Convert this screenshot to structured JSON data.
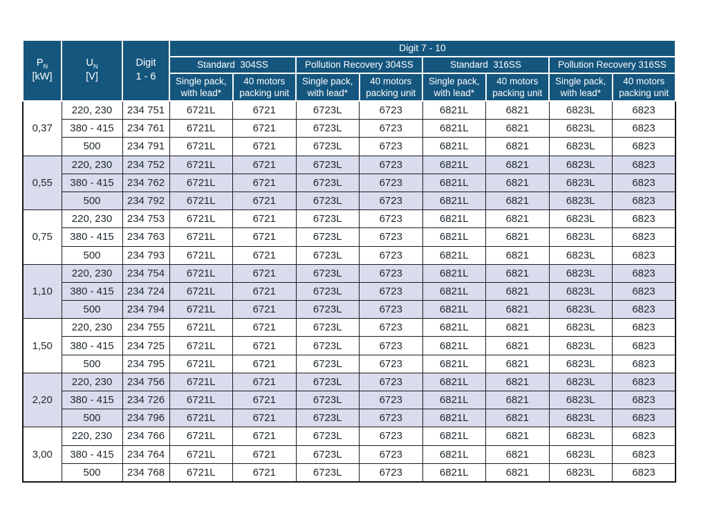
{
  "colors": {
    "header_bg": "#15567e",
    "header_text": "#ffffff",
    "row_shaded": "#d9dced",
    "border": "#1a1a1a",
    "body_text": "#1c262b"
  },
  "table": {
    "header": {
      "pn": {
        "symbol": "P",
        "sub": "N",
        "unit": "[kW]"
      },
      "un": {
        "symbol": "U",
        "sub": "N",
        "unit": "[V]"
      },
      "digit16": {
        "line1": "Digit",
        "line2": "1 - 6"
      },
      "digit_span": "Digit  7 - 10",
      "material_groups": [
        {
          "label": "Standard  304SS"
        },
        {
          "label": "Pollution Recovery 304SS"
        },
        {
          "label": "Standard  316SS"
        },
        {
          "label": "Pollution Recovery 316SS"
        }
      ],
      "sub_single": {
        "line1": "Single pack,",
        "line2": "with lead*"
      },
      "sub_pack": {
        "line1": "40 motors",
        "line2": "packing unit"
      }
    },
    "groups": [
      {
        "pn": "0,37",
        "shaded": false,
        "rows": [
          {
            "un": "220, 230",
            "digit": "234 751",
            "codes": [
              "6721L",
              "6721",
              "6723L",
              "6723",
              "6821L",
              "6821",
              "6823L",
              "6823"
            ]
          },
          {
            "un": "380 - 415",
            "digit": "234 761",
            "codes": [
              "6721L",
              "6721",
              "6723L",
              "6723",
              "6821L",
              "6821",
              "6823L",
              "6823"
            ]
          },
          {
            "un": "500",
            "digit": "234 791",
            "codes": [
              "6721L",
              "6721",
              "6723L",
              "6723",
              "6821L",
              "6821",
              "6823L",
              "6823"
            ]
          }
        ]
      },
      {
        "pn": "0,55",
        "shaded": true,
        "rows": [
          {
            "un": "220, 230",
            "digit": "234 752",
            "codes": [
              "6721L",
              "6721",
              "6723L",
              "6723",
              "6821L",
              "6821",
              "6823L",
              "6823"
            ]
          },
          {
            "un": "380 - 415",
            "digit": "234 762",
            "codes": [
              "6721L",
              "6721",
              "6723L",
              "6723",
              "6821L",
              "6821",
              "6823L",
              "6823"
            ]
          },
          {
            "un": "500",
            "digit": "234 792",
            "codes": [
              "6721L",
              "6721",
              "6723L",
              "6723",
              "6821L",
              "6821",
              "6823L",
              "6823"
            ]
          }
        ]
      },
      {
        "pn": "0,75",
        "shaded": false,
        "rows": [
          {
            "un": "220, 230",
            "digit": "234 753",
            "codes": [
              "6721L",
              "6721",
              "6723L",
              "6723",
              "6821L",
              "6821",
              "6823L",
              "6823"
            ]
          },
          {
            "un": "380 - 415",
            "digit": "234 763",
            "codes": [
              "6721L",
              "6721",
              "6723L",
              "6723",
              "6821L",
              "6821",
              "6823L",
              "6823"
            ]
          },
          {
            "un": "500",
            "digit": "234 793",
            "codes": [
              "6721L",
              "6721",
              "6723L",
              "6723",
              "6821L",
              "6821",
              "6823L",
              "6823"
            ]
          }
        ]
      },
      {
        "pn": "1,10",
        "shaded": true,
        "rows": [
          {
            "un": "220, 230",
            "digit": "234 754",
            "codes": [
              "6721L",
              "6721",
              "6723L",
              "6723",
              "6821L",
              "6821",
              "6823L",
              "6823"
            ]
          },
          {
            "un": "380 - 415",
            "digit": "234 724",
            "codes": [
              "6721L",
              "6721",
              "6723L",
              "6723",
              "6821L",
              "6821",
              "6823L",
              "6823"
            ]
          },
          {
            "un": "500",
            "digit": "234 794",
            "codes": [
              "6721L",
              "6721",
              "6723L",
              "6723",
              "6821L",
              "6821",
              "6823L",
              "6823"
            ]
          }
        ]
      },
      {
        "pn": "1,50",
        "shaded": false,
        "rows": [
          {
            "un": "220, 230",
            "digit": "234 755",
            "codes": [
              "6721L",
              "6721",
              "6723L",
              "6723",
              "6821L",
              "6821",
              "6823L",
              "6823"
            ]
          },
          {
            "un": "380 - 415",
            "digit": "234 725",
            "codes": [
              "6721L",
              "6721",
              "6723L",
              "6723",
              "6821L",
              "6821",
              "6823L",
              "6823"
            ]
          },
          {
            "un": "500",
            "digit": "234 795",
            "codes": [
              "6721L",
              "6721",
              "6723L",
              "6723",
              "6821L",
              "6821",
              "6823L",
              "6823"
            ]
          }
        ]
      },
      {
        "pn": "2,20",
        "shaded": true,
        "rows": [
          {
            "un": "220, 230",
            "digit": "234 756",
            "codes": [
              "6721L",
              "6721",
              "6723L",
              "6723",
              "6821L",
              "6821",
              "6823L",
              "6823"
            ]
          },
          {
            "un": "380 - 415",
            "digit": "234 726",
            "codes": [
              "6721L",
              "6721",
              "6723L",
              "6723",
              "6821L",
              "6821",
              "6823L",
              "6823"
            ]
          },
          {
            "un": "500",
            "digit": "234 796",
            "codes": [
              "6721L",
              "6721",
              "6723L",
              "6723",
              "6821L",
              "6821",
              "6823L",
              "6823"
            ]
          }
        ]
      },
      {
        "pn": "3,00",
        "shaded": false,
        "rows": [
          {
            "un": "220, 230",
            "digit": "234 766",
            "codes": [
              "6721L",
              "6721",
              "6723L",
              "6723",
              "6821L",
              "6821",
              "6823L",
              "6823"
            ]
          },
          {
            "un": "380 - 415",
            "digit": "234 764",
            "codes": [
              "6721L",
              "6721",
              "6723L",
              "6723",
              "6821L",
              "6821",
              "6823L",
              "6823"
            ]
          },
          {
            "un": "500",
            "digit": "234 768",
            "codes": [
              "6721L",
              "6721",
              "6723L",
              "6723",
              "6821L",
              "6821",
              "6823L",
              "6823"
            ]
          }
        ]
      }
    ]
  }
}
